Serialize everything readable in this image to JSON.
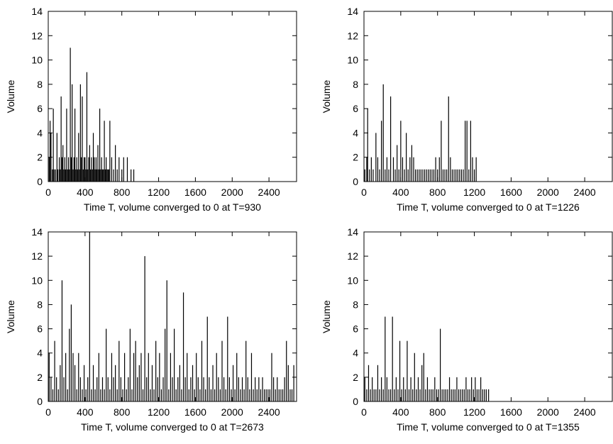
{
  "chart_data": [
    {
      "type": "bar",
      "xlabel": "Time T, volume converged to 0 at T=930",
      "ylabel": "Volume",
      "xlim": [
        0,
        2700
      ],
      "ylim": [
        0,
        14
      ],
      "xticks": [
        0,
        400,
        800,
        1200,
        1600,
        2000,
        2400
      ],
      "yticks": [
        0,
        2,
        4,
        6,
        8,
        10,
        12,
        14
      ],
      "grid": false,
      "x": [
        10,
        20,
        30,
        45,
        55,
        65,
        80,
        95,
        105,
        120,
        130,
        140,
        150,
        160,
        170,
        180,
        190,
        200,
        210,
        220,
        230,
        240,
        250,
        260,
        270,
        280,
        290,
        300,
        310,
        320,
        330,
        340,
        350,
        360,
        370,
        380,
        390,
        400,
        410,
        420,
        430,
        440,
        450,
        460,
        470,
        480,
        490,
        500,
        510,
        520,
        530,
        540,
        550,
        560,
        570,
        580,
        590,
        600,
        610,
        620,
        630,
        640,
        650,
        660,
        670,
        690,
        710,
        730,
        750,
        770,
        800,
        820,
        860,
        900,
        930
      ],
      "values": [
        2,
        5,
        4,
        1,
        6,
        1,
        1,
        4,
        1,
        2,
        1,
        7,
        2,
        3,
        1,
        2,
        1,
        6,
        1,
        2,
        1,
        11,
        2,
        8,
        1,
        2,
        6,
        1,
        2,
        1,
        4,
        1,
        8,
        2,
        7,
        1,
        2,
        2,
        1,
        9,
        1,
        2,
        3,
        1,
        2,
        1,
        4,
        2,
        1,
        2,
        1,
        3,
        1,
        6,
        1,
        2,
        1,
        1,
        5,
        1,
        2,
        1,
        1,
        1,
        5,
        2,
        1,
        3,
        1,
        2,
        1,
        2,
        2,
        1,
        1
      ]
    },
    {
      "type": "bar",
      "xlabel": "Time T, volume converged to 0 at T=1226",
      "ylabel": "Volume",
      "xlim": [
        0,
        2700
      ],
      "ylim": [
        0,
        14
      ],
      "xticks": [
        0,
        400,
        800,
        1200,
        1600,
        2000,
        2400
      ],
      "yticks": [
        0,
        2,
        4,
        6,
        8,
        10,
        12,
        14
      ],
      "grid": false,
      "x": [
        10,
        30,
        40,
        60,
        80,
        100,
        130,
        150,
        170,
        190,
        210,
        230,
        250,
        270,
        290,
        320,
        340,
        360,
        380,
        400,
        420,
        440,
        460,
        480,
        500,
        520,
        540,
        560,
        580,
        600,
        620,
        640,
        660,
        680,
        700,
        720,
        740,
        760,
        780,
        800,
        820,
        840,
        860,
        880,
        900,
        920,
        940,
        960,
        980,
        1000,
        1020,
        1040,
        1060,
        1080,
        1100,
        1120,
        1140,
        1160,
        1180,
        1200,
        1220
      ],
      "values": [
        1,
        2,
        6,
        1,
        2,
        1,
        4,
        2,
        1,
        5,
        8,
        1,
        2,
        1,
        7,
        2,
        1,
        3,
        1,
        5,
        2,
        1,
        4,
        1,
        2,
        3,
        2,
        1,
        1,
        1,
        1,
        1,
        1,
        1,
        1,
        1,
        1,
        1,
        2,
        1,
        2,
        5,
        1,
        1,
        1,
        7,
        2,
        1,
        1,
        1,
        1,
        1,
        1,
        1,
        5,
        5,
        1,
        5,
        2,
        1,
        2
      ]
    },
    {
      "type": "bar",
      "xlabel": "Time T, volume converged to 0 at T=2673",
      "ylabel": "Volume",
      "xlim": [
        0,
        2700
      ],
      "ylim": [
        0,
        14
      ],
      "xticks": [
        0,
        400,
        800,
        1200,
        1600,
        2000,
        2400
      ],
      "yticks": [
        0,
        2,
        4,
        6,
        8,
        10,
        12,
        14
      ],
      "grid": false,
      "x": [
        10,
        30,
        50,
        70,
        90,
        110,
        130,
        150,
        170,
        190,
        210,
        230,
        250,
        270,
        290,
        310,
        330,
        350,
        370,
        390,
        410,
        430,
        450,
        470,
        490,
        510,
        530,
        550,
        570,
        590,
        610,
        630,
        650,
        670,
        690,
        710,
        730,
        750,
        770,
        790,
        810,
        830,
        850,
        870,
        890,
        910,
        930,
        950,
        970,
        990,
        1010,
        1030,
        1050,
        1070,
        1090,
        1110,
        1130,
        1150,
        1170,
        1190,
        1210,
        1230,
        1250,
        1270,
        1290,
        1310,
        1330,
        1350,
        1370,
        1390,
        1410,
        1430,
        1450,
        1470,
        1490,
        1510,
        1530,
        1550,
        1570,
        1590,
        1610,
        1630,
        1650,
        1670,
        1690,
        1710,
        1730,
        1750,
        1770,
        1790,
        1810,
        1830,
        1850,
        1870,
        1890,
        1910,
        1930,
        1950,
        1970,
        1990,
        2010,
        2030,
        2050,
        2070,
        2090,
        2110,
        2130,
        2150,
        2170,
        2190,
        2210,
        2230,
        2250,
        2270,
        2290,
        2310,
        2330,
        2350,
        2370,
        2390,
        2410,
        2430,
        2450,
        2470,
        2490,
        2510,
        2530,
        2550,
        2570,
        2590,
        2610,
        2630,
        2650,
        2670
      ],
      "values": [
        4,
        2,
        1,
        5,
        2,
        1,
        3,
        10,
        2,
        4,
        1,
        6,
        8,
        4,
        3,
        1,
        4,
        2,
        1,
        3,
        1,
        2,
        14,
        1,
        3,
        1,
        2,
        4,
        1,
        2,
        1,
        6,
        2,
        1,
        4,
        2,
        3,
        1,
        5,
        2,
        1,
        4,
        1,
        2,
        6,
        1,
        4,
        5,
        2,
        3,
        4,
        1,
        12,
        2,
        4,
        1,
        3,
        1,
        5,
        2,
        4,
        1,
        2,
        6,
        10,
        1,
        4,
        2,
        6,
        1,
        2,
        3,
        1,
        9,
        2,
        4,
        1,
        2,
        3,
        1,
        4,
        2,
        1,
        5,
        2,
        1,
        7,
        2,
        1,
        3,
        1,
        4,
        2,
        1,
        5,
        2,
        1,
        7,
        2,
        1,
        3,
        1,
        4,
        2,
        1,
        2,
        1,
        5,
        2,
        1,
        4,
        1,
        2,
        1,
        2,
        1,
        2,
        1,
        1,
        1,
        1,
        4,
        2,
        1,
        2,
        1,
        1,
        1,
        2,
        5,
        3,
        1,
        1,
        3
      ]
    },
    {
      "type": "bar",
      "xlabel": "Time T, volume converged to 0 at T=1355",
      "ylabel": "Volume",
      "xlim": [
        0,
        2700
      ],
      "ylim": [
        0,
        14
      ],
      "xticks": [
        0,
        400,
        800,
        1200,
        1600,
        2000,
        2400
      ],
      "yticks": [
        0,
        2,
        4,
        6,
        8,
        10,
        12,
        14
      ],
      "grid": false,
      "x": [
        10,
        30,
        50,
        70,
        90,
        110,
        130,
        150,
        170,
        190,
        210,
        230,
        250,
        270,
        290,
        310,
        330,
        350,
        370,
        390,
        410,
        430,
        450,
        470,
        490,
        510,
        530,
        550,
        570,
        590,
        610,
        630,
        650,
        670,
        690,
        710,
        730,
        750,
        770,
        790,
        810,
        830,
        850,
        870,
        890,
        910,
        930,
        950,
        970,
        990,
        1010,
        1030,
        1050,
        1070,
        1090,
        1110,
        1130,
        1150,
        1170,
        1190,
        1210,
        1230,
        1250,
        1270,
        1290,
        1310,
        1330,
        1355
      ],
      "values": [
        2,
        1,
        3,
        1,
        2,
        1,
        1,
        3,
        1,
        2,
        1,
        7,
        2,
        1,
        1,
        7,
        1,
        2,
        1,
        5,
        1,
        2,
        1,
        5,
        1,
        2,
        1,
        4,
        1,
        2,
        1,
        3,
        4,
        1,
        2,
        1,
        1,
        1,
        2,
        1,
        1,
        6,
        1,
        1,
        1,
        1,
        2,
        1,
        1,
        1,
        2,
        1,
        1,
        1,
        1,
        2,
        1,
        1,
        2,
        1,
        2,
        1,
        1,
        2,
        1,
        1,
        1,
        1
      ]
    }
  ]
}
